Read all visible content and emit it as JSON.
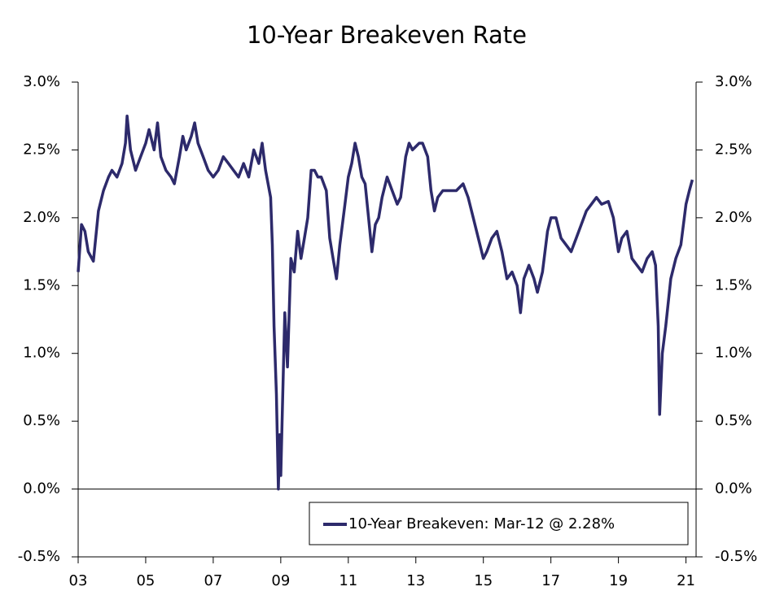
{
  "chart_data": {
    "type": "line",
    "title": "10-Year Breakeven Rate",
    "legend": "lower right",
    "xlim": [
      2003,
      2021.3
    ],
    "xticks": [
      {
        "value": 2003,
        "label": "03"
      },
      {
        "value": 2005,
        "label": "05"
      },
      {
        "value": 2007,
        "label": "07"
      },
      {
        "value": 2009,
        "label": "09"
      },
      {
        "value": 2011,
        "label": "11"
      },
      {
        "value": 2013,
        "label": "13"
      },
      {
        "value": 2015,
        "label": "15"
      },
      {
        "value": 2017,
        "label": "17"
      },
      {
        "value": 2019,
        "label": "19"
      },
      {
        "value": 2021,
        "label": "21"
      }
    ],
    "ylim": [
      -0.5,
      3.0
    ],
    "yticks": [
      {
        "value": -0.5,
        "label": "-0.5%"
      },
      {
        "value": 0.0,
        "label": "0.0%"
      },
      {
        "value": 0.5,
        "label": "0.5%"
      },
      {
        "value": 1.0,
        "label": "1.0%"
      },
      {
        "value": 1.5,
        "label": "1.5%"
      },
      {
        "value": 2.0,
        "label": "2.0%"
      },
      {
        "value": 2.5,
        "label": "2.5%"
      },
      {
        "value": 3.0,
        "label": "3.0%"
      }
    ],
    "y2lim": [
      -0.5,
      3.0
    ],
    "y2ticks": [
      {
        "value": -0.5,
        "label": "-0.5%"
      },
      {
        "value": 0.0,
        "label": "0.0%"
      },
      {
        "value": 0.5,
        "label": "0.5%"
      },
      {
        "value": 1.0,
        "label": "1.0%"
      },
      {
        "value": 1.5,
        "label": "1.5%"
      },
      {
        "value": 2.0,
        "label": "2.0%"
      },
      {
        "value": 2.5,
        "label": "2.5%"
      },
      {
        "value": 3.0,
        "label": "3.0%"
      }
    ],
    "series": [
      {
        "name": "10-Year Breakeven: Mar-12 @ 2.28%",
        "color": "#2d2a6b",
        "x": [
          2003.0,
          2003.1,
          2003.2,
          2003.3,
          2003.45,
          2003.6,
          2003.75,
          2003.9,
          2004.0,
          2004.15,
          2004.3,
          2004.4,
          2004.45,
          2004.55,
          2004.7,
          2004.85,
          2005.0,
          2005.1,
          2005.25,
          2005.35,
          2005.45,
          2005.6,
          2005.75,
          2005.85,
          2006.0,
          2006.1,
          2006.2,
          2006.35,
          2006.45,
          2006.55,
          2006.7,
          2006.85,
          2007.0,
          2007.15,
          2007.3,
          2007.45,
          2007.6,
          2007.75,
          2007.9,
          2008.05,
          2008.2,
          2008.35,
          2008.45,
          2008.55,
          2008.7,
          2008.75,
          2008.8,
          2008.87,
          2008.93,
          2008.97,
          2009.0,
          2009.05,
          2009.12,
          2009.2,
          2009.3,
          2009.4,
          2009.5,
          2009.6,
          2009.7,
          2009.8,
          2009.9,
          2010.0,
          2010.1,
          2010.2,
          2010.35,
          2010.45,
          2010.55,
          2010.65,
          2010.75,
          2010.9,
          2011.0,
          2011.1,
          2011.2,
          2011.3,
          2011.4,
          2011.5,
          2011.6,
          2011.7,
          2011.8,
          2011.9,
          2012.0,
          2012.15,
          2012.3,
          2012.45,
          2012.55,
          2012.7,
          2012.8,
          2012.9,
          2013.1,
          2013.2,
          2013.35,
          2013.45,
          2013.55,
          2013.65,
          2013.8,
          2014.0,
          2014.2,
          2014.4,
          2014.55,
          2014.7,
          2014.85,
          2015.0,
          2015.1,
          2015.25,
          2015.4,
          2015.55,
          2015.7,
          2015.85,
          2016.0,
          2016.1,
          2016.2,
          2016.35,
          2016.5,
          2016.6,
          2016.75,
          2016.9,
          2017.0,
          2017.15,
          2017.3,
          2017.45,
          2017.6,
          2017.75,
          2017.9,
          2018.05,
          2018.2,
          2018.35,
          2018.5,
          2018.7,
          2018.85,
          2019.0,
          2019.1,
          2019.25,
          2019.4,
          2019.55,
          2019.7,
          2019.85,
          2020.0,
          2020.1,
          2020.18,
          2020.22,
          2020.3,
          2020.4,
          2020.55,
          2020.7,
          2020.85,
          2021.0,
          2021.1,
          2021.19
        ],
        "values": [
          1.6,
          1.95,
          1.9,
          1.75,
          1.68,
          2.05,
          2.2,
          2.3,
          2.35,
          2.3,
          2.4,
          2.55,
          2.75,
          2.5,
          2.35,
          2.45,
          2.55,
          2.65,
          2.5,
          2.7,
          2.45,
          2.35,
          2.3,
          2.25,
          2.45,
          2.6,
          2.5,
          2.6,
          2.7,
          2.55,
          2.45,
          2.35,
          2.3,
          2.35,
          2.45,
          2.4,
          2.35,
          2.3,
          2.4,
          2.3,
          2.5,
          2.4,
          2.55,
          2.35,
          2.15,
          1.8,
          1.2,
          0.7,
          0.0,
          0.4,
          0.1,
          0.6,
          1.3,
          0.9,
          1.7,
          1.6,
          1.9,
          1.7,
          1.85,
          2.0,
          2.35,
          2.35,
          2.3,
          2.3,
          2.2,
          1.85,
          1.7,
          1.55,
          1.8,
          2.1,
          2.3,
          2.4,
          2.55,
          2.45,
          2.3,
          2.25,
          2.0,
          1.75,
          1.95,
          2.0,
          2.15,
          2.3,
          2.2,
          2.1,
          2.15,
          2.45,
          2.55,
          2.5,
          2.55,
          2.55,
          2.45,
          2.2,
          2.05,
          2.15,
          2.2,
          2.2,
          2.2,
          2.25,
          2.15,
          2.0,
          1.85,
          1.7,
          1.75,
          1.85,
          1.9,
          1.75,
          1.55,
          1.6,
          1.5,
          1.3,
          1.55,
          1.65,
          1.55,
          1.45,
          1.6,
          1.9,
          2.0,
          2.0,
          1.85,
          1.8,
          1.75,
          1.85,
          1.95,
          2.05,
          2.1,
          2.15,
          2.1,
          2.12,
          2.0,
          1.75,
          1.85,
          1.9,
          1.7,
          1.65,
          1.6,
          1.7,
          1.75,
          1.65,
          1.2,
          0.55,
          1.0,
          1.2,
          1.55,
          1.7,
          1.8,
          2.1,
          2.2,
          2.28
        ]
      }
    ]
  }
}
